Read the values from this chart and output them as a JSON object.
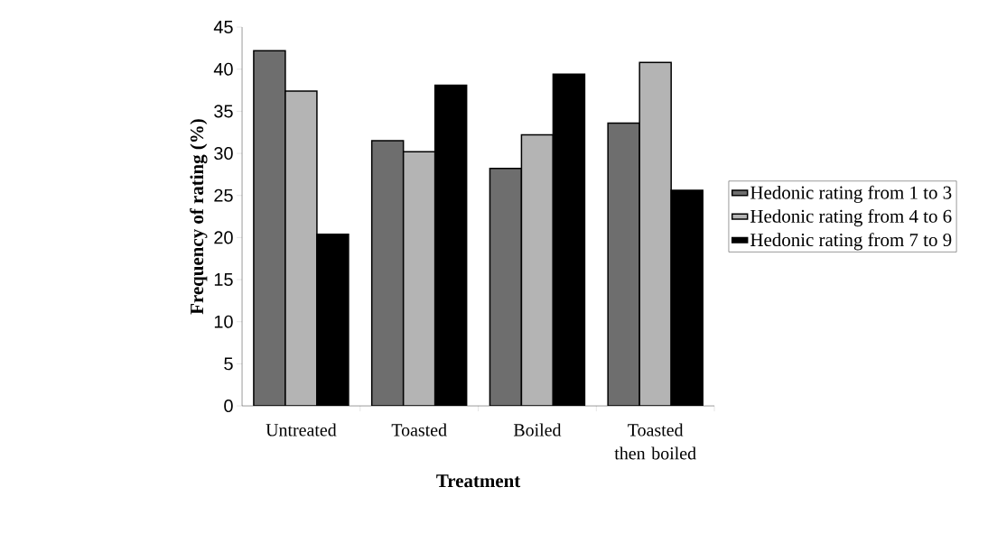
{
  "chart_data": {
    "type": "bar",
    "xlabel": "Treatment",
    "ylabel": "Frequency of rating (%)",
    "categories": [
      "Untreated",
      "Toasted",
      "Boiled",
      "Toasted then boiled"
    ],
    "series": [
      {
        "name": "Hedonic rating from 1 to 3",
        "color": "#6e6e6e",
        "values": [
          42.2,
          31.5,
          28.2,
          33.6
        ]
      },
      {
        "name": "Hedonic rating from 4 to 6",
        "color": "#b4b4b4",
        "values": [
          37.4,
          30.2,
          32.2,
          40.8
        ]
      },
      {
        "name": "Hedonic rating from 7 to 9",
        "color": "#000000",
        "values": [
          20.4,
          38.1,
          39.4,
          25.6
        ]
      }
    ],
    "ylim": [
      0,
      45
    ],
    "yticks": [
      0,
      5,
      10,
      15,
      20,
      25,
      30,
      35,
      40,
      45
    ],
    "grid": false,
    "legend": "right"
  }
}
